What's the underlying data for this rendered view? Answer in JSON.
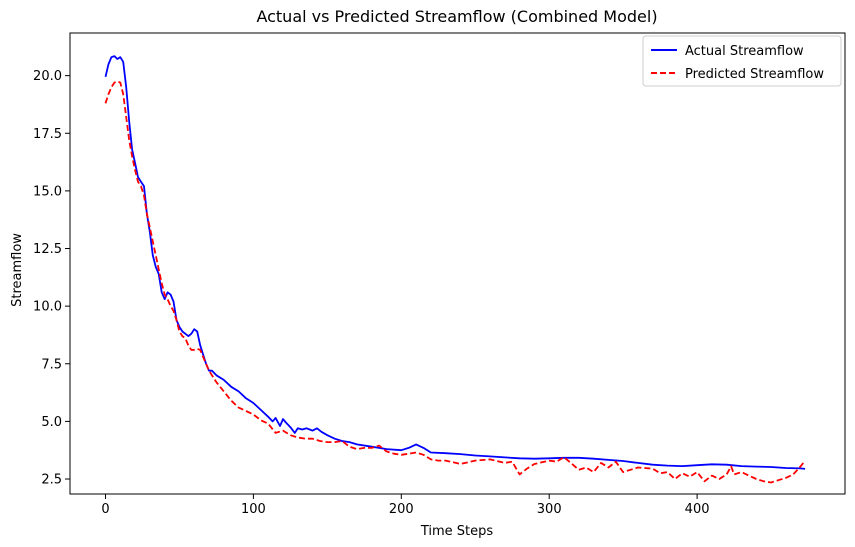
{
  "chart_data": {
    "type": "line",
    "title": "Actual vs Predicted Streamflow (Combined Model)",
    "xlabel": "Time Steps",
    "ylabel": "Streamflow",
    "xlim": [
      -24,
      500
    ],
    "ylim": [
      1.85,
      21.85
    ],
    "xticks": [
      0,
      100,
      200,
      300,
      400
    ],
    "xtick_labels": [
      "0",
      "100",
      "200",
      "300",
      "400"
    ],
    "yticks": [
      2.5,
      5.0,
      7.5,
      10.0,
      12.5,
      15.0,
      17.5,
      20.0
    ],
    "ytick_labels": [
      "2.5",
      "5.0",
      "7.5",
      "10.0",
      "12.5",
      "15.0",
      "17.5",
      "20.0"
    ],
    "grid": false,
    "legend_position": "top-right",
    "series": [
      {
        "name": "Actual Streamflow",
        "color": "#0000ff",
        "dash": "solid",
        "x": [
          0,
          2,
          4,
          6,
          8,
          10,
          12,
          14,
          16,
          18,
          20,
          22,
          24,
          26,
          28,
          30,
          32,
          34,
          36,
          38,
          40,
          42,
          44,
          46,
          48,
          50,
          52,
          54,
          56,
          58,
          60,
          62,
          64,
          66,
          68,
          70,
          72,
          75,
          80,
          85,
          90,
          95,
          100,
          105,
          110,
          113,
          115,
          118,
          120,
          122,
          125,
          128,
          130,
          133,
          136,
          140,
          143,
          146,
          150,
          155,
          160,
          165,
          170,
          180,
          190,
          200,
          205,
          210,
          215,
          220,
          230,
          240,
          250,
          260,
          270,
          280,
          290,
          300,
          310,
          320,
          330,
          340,
          350,
          360,
          370,
          380,
          390,
          400,
          410,
          420,
          430,
          440,
          450,
          460,
          470,
          473
        ],
        "y": [
          19.95,
          20.5,
          20.8,
          20.85,
          20.72,
          20.8,
          20.6,
          19.5,
          18.0,
          16.8,
          16.2,
          15.6,
          15.4,
          15.2,
          14.0,
          13.2,
          12.2,
          11.7,
          11.4,
          10.6,
          10.3,
          10.6,
          10.5,
          10.2,
          9.4,
          9.1,
          8.9,
          8.8,
          8.7,
          8.8,
          9.0,
          8.9,
          8.3,
          7.9,
          7.5,
          7.2,
          7.2,
          7.0,
          6.8,
          6.5,
          6.3,
          6.0,
          5.8,
          5.5,
          5.2,
          5.0,
          5.15,
          4.8,
          5.1,
          4.95,
          4.75,
          4.5,
          4.7,
          4.65,
          4.7,
          4.6,
          4.7,
          4.55,
          4.4,
          4.25,
          4.15,
          4.1,
          4.0,
          3.9,
          3.8,
          3.75,
          3.85,
          4.0,
          3.85,
          3.65,
          3.62,
          3.58,
          3.52,
          3.48,
          3.44,
          3.4,
          3.38,
          3.4,
          3.42,
          3.42,
          3.38,
          3.33,
          3.28,
          3.2,
          3.12,
          3.08,
          3.06,
          3.1,
          3.14,
          3.12,
          3.06,
          3.04,
          3.02,
          2.98,
          2.96,
          2.94
        ]
      },
      {
        "name": "Predicted Streamflow",
        "color": "#ff0000",
        "dash": "dashed",
        "x": [
          0,
          2,
          4,
          6,
          8,
          10,
          12,
          14,
          16,
          18,
          20,
          22,
          24,
          26,
          28,
          30,
          32,
          34,
          36,
          38,
          40,
          42,
          44,
          46,
          48,
          50,
          52,
          54,
          56,
          58,
          60,
          62,
          64,
          66,
          68,
          70,
          75,
          80,
          85,
          90,
          95,
          100,
          105,
          110,
          115,
          120,
          125,
          130,
          135,
          140,
          145,
          150,
          155,
          160,
          165,
          170,
          175,
          180,
          185,
          190,
          195,
          200,
          205,
          210,
          215,
          220,
          225,
          230,
          240,
          250,
          260,
          270,
          275,
          280,
          285,
          290,
          300,
          305,
          310,
          320,
          325,
          330,
          335,
          340,
          345,
          350,
          355,
          360,
          370,
          375,
          380,
          385,
          390,
          395,
          400,
          405,
          410,
          415,
          420,
          423,
          425,
          430,
          435,
          440,
          445,
          450,
          455,
          460,
          465,
          470,
          473
        ],
        "y": [
          18.8,
          19.2,
          19.5,
          19.7,
          19.75,
          19.7,
          19.2,
          18.2,
          17.2,
          16.5,
          15.9,
          15.4,
          15.2,
          14.8,
          14.0,
          13.4,
          12.8,
          12.2,
          11.6,
          11.0,
          10.5,
          10.3,
          10.0,
          9.8,
          9.4,
          8.9,
          8.7,
          8.6,
          8.3,
          8.1,
          8.1,
          8.15,
          8.1,
          7.8,
          7.5,
          7.2,
          6.7,
          6.3,
          5.9,
          5.6,
          5.45,
          5.3,
          5.05,
          4.9,
          4.5,
          4.6,
          4.4,
          4.3,
          4.25,
          4.25,
          4.15,
          4.1,
          4.1,
          4.15,
          3.9,
          3.8,
          3.85,
          3.85,
          3.95,
          3.7,
          3.6,
          3.55,
          3.6,
          3.65,
          3.55,
          3.35,
          3.3,
          3.3,
          3.15,
          3.3,
          3.35,
          3.2,
          3.25,
          2.7,
          2.95,
          3.15,
          3.3,
          3.25,
          3.45,
          2.9,
          3.0,
          2.8,
          3.2,
          3.0,
          3.25,
          2.8,
          2.9,
          3.0,
          2.95,
          2.75,
          2.8,
          2.5,
          2.75,
          2.6,
          2.8,
          2.4,
          2.65,
          2.5,
          2.7,
          3.05,
          2.7,
          2.8,
          2.65,
          2.5,
          2.4,
          2.35,
          2.45,
          2.55,
          2.7,
          3.05,
          3.3
        ]
      }
    ]
  }
}
